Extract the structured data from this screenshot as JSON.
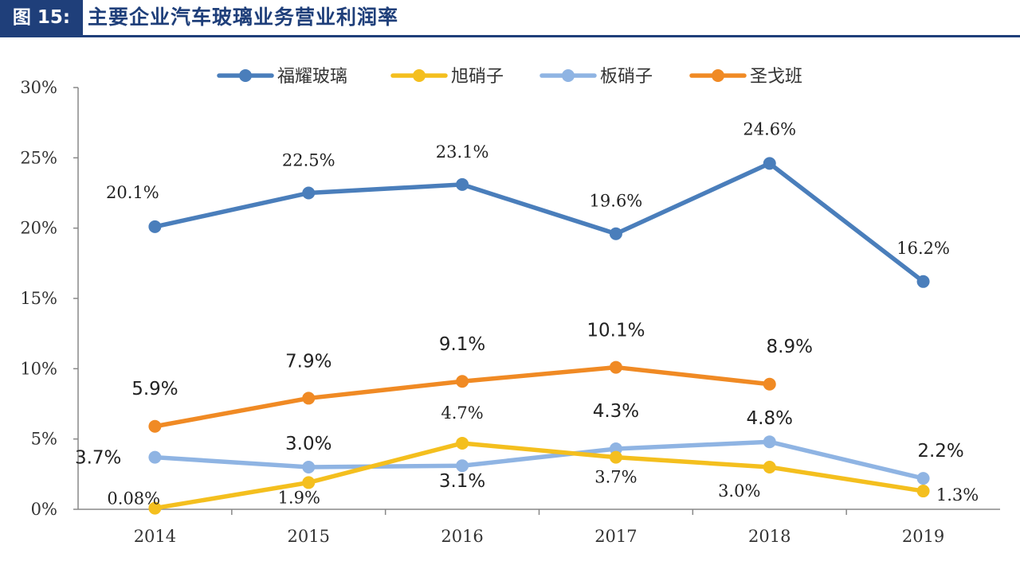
{
  "header": {
    "figure_no": "图 15:",
    "title": "主要企业汽车玻璃业务营业利润率"
  },
  "chart_data": {
    "type": "line",
    "title": "主要企业汽车玻璃业务营业利润率",
    "categories": [
      "2014",
      "2015",
      "2016",
      "2017",
      "2018",
      "2019"
    ],
    "y_ticks": [
      "0%",
      "5%",
      "10%",
      "15%",
      "20%",
      "25%",
      "30%"
    ],
    "ylim": [
      0,
      30
    ],
    "y_unit": "%",
    "grid": false,
    "legend_position": "top",
    "series": [
      {
        "name": "福耀玻璃",
        "color": "#4a7ebb",
        "values": [
          20.1,
          22.5,
          23.1,
          19.6,
          24.6,
          16.2
        ],
        "labels": [
          "20.1%",
          "22.5%",
          "23.1%",
          "19.6%",
          "24.6%",
          "16.2%"
        ]
      },
      {
        "name": "旭硝子",
        "color": "#f4bf1e",
        "values": [
          0.08,
          1.9,
          4.7,
          3.7,
          3.0,
          1.3
        ],
        "labels": [
          "0.08%",
          "1.9%",
          "4.7%",
          "3.7%",
          "3.0%",
          "1.3%"
        ]
      },
      {
        "name": "板硝子",
        "color": "#8fb4e3",
        "values": [
          3.7,
          3.0,
          3.1,
          4.3,
          4.8,
          2.2
        ],
        "labels": [
          "3.7%",
          "3.0%",
          "3.1%",
          "4.3%",
          "4.8%",
          "2.2%"
        ]
      },
      {
        "name": "圣戈班",
        "color": "#f08a24",
        "values": [
          5.9,
          7.9,
          9.1,
          10.1,
          8.9,
          null
        ],
        "labels": [
          "5.9%",
          "7.9%",
          "9.1%",
          "10.1%",
          "8.9%",
          null
        ]
      }
    ]
  }
}
